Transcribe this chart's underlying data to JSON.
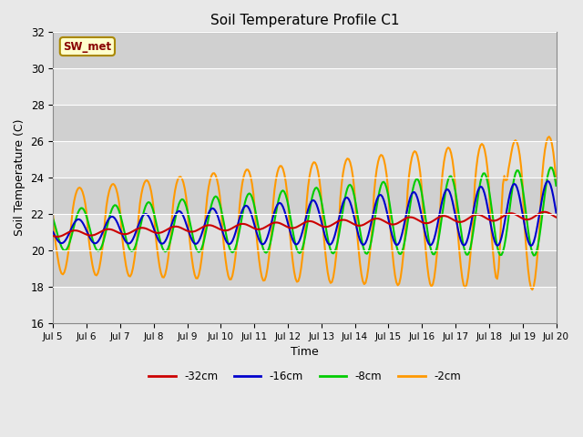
{
  "title": "Soil Temperature Profile C1",
  "xlabel": "Time",
  "ylabel": "Soil Temperature (C)",
  "ylim": [
    16,
    32
  ],
  "xlim": [
    0,
    15
  ],
  "x_tick_labels": [
    "Jul 5",
    "Jul 6",
    "Jul 7",
    "Jul 8",
    "Jul 9",
    "Jul 10",
    "Jul 11",
    "Jul 12",
    "Jul 13",
    "Jul 14",
    "Jul 15",
    "Jul 16",
    "Jul 17",
    "Jul 18",
    "Jul 19",
    "Jul 20"
  ],
  "background_color": "#e8e8e8",
  "plot_bg_color": "#e8e8e8",
  "annotation_text": "SW_met",
  "annotation_bg": "#ffffcc",
  "annotation_border": "#aa8800",
  "annotation_text_color": "#880000",
  "legend_entries": [
    "-32cm",
    "-16cm",
    "-8cm",
    "-2cm"
  ],
  "legend_colors": [
    "#cc0000",
    "#0000cc",
    "#00cc00",
    "#ff9900"
  ],
  "title_fontsize": 11,
  "label_fontsize": 9,
  "band_colors": [
    "#e0e0e0",
    "#d0d0d0"
  ],
  "grid_color": "#ffffff"
}
